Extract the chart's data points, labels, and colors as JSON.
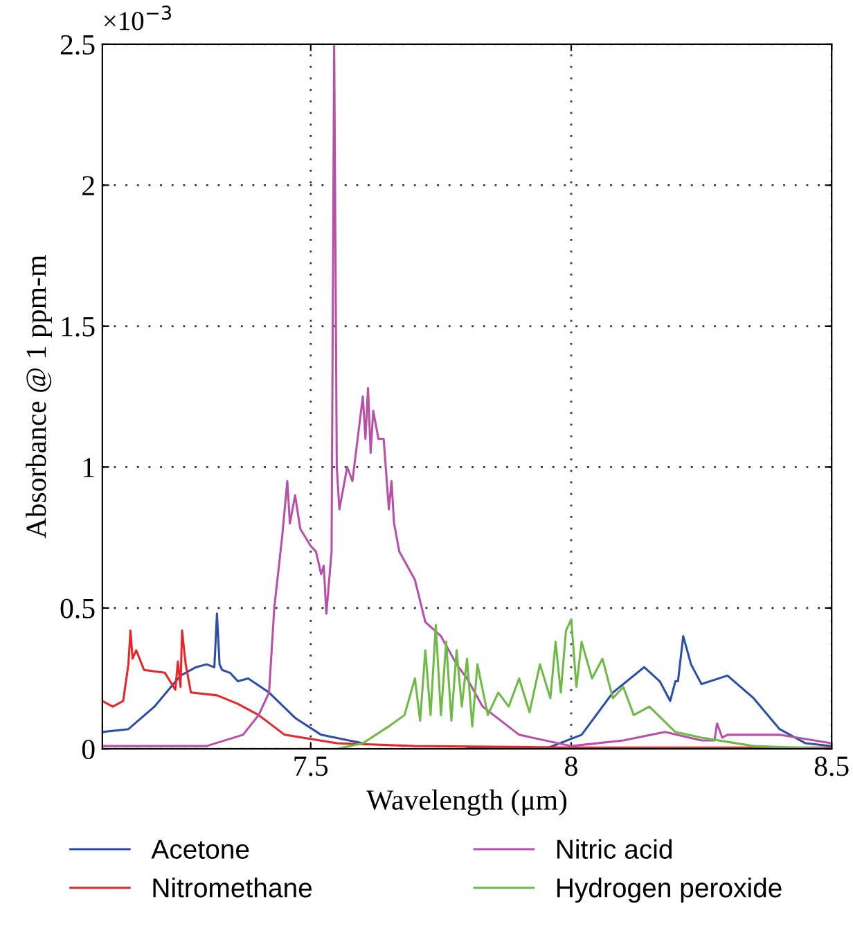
{
  "chart_data": {
    "type": "line",
    "xlabel": "Wavelength (μm)",
    "ylabel": "Absorbance @ 1 ppm-m",
    "annotations": [
      "×10$^{−3}$"
    ],
    "xlim": [
      7.1,
      8.5
    ],
    "ylim": [
      0,
      2.5
    ],
    "xticks": [
      7.5,
      8,
      8.5
    ],
    "yticks": [
      0,
      0.5,
      1,
      1.5,
      2,
      2.5
    ],
    "grid": true,
    "legend": "bottom",
    "line_style": "solid",
    "marker": "none",
    "series": [
      {
        "name": "Acetone",
        "color": "#2b4fa8",
        "x": [
          7.1,
          7.15,
          7.2,
          7.25,
          7.28,
          7.3,
          7.315,
          7.32,
          7.325,
          7.33,
          7.345,
          7.36,
          7.38,
          7.42,
          7.47,
          7.52,
          7.6,
          7.7,
          7.8,
          7.95,
          8.02,
          8.08,
          8.14,
          8.17,
          8.19,
          8.2,
          8.205,
          8.215,
          8.23,
          8.25,
          8.3,
          8.35,
          8.4,
          8.45,
          8.5
        ],
        "values": [
          0.06,
          0.07,
          0.15,
          0.26,
          0.29,
          0.3,
          0.29,
          0.48,
          0.3,
          0.28,
          0.27,
          0.24,
          0.25,
          0.2,
          0.11,
          0.05,
          0.02,
          null,
          0.005,
          0,
          0.05,
          0.2,
          0.29,
          0.24,
          0.17,
          0.24,
          0.24,
          0.4,
          0.3,
          0.23,
          0.26,
          0.18,
          0.07,
          0.02,
          0.01
        ]
      },
      {
        "name": "Nitromethane",
        "color": "#e8262a",
        "x": [
          7.1,
          7.12,
          7.14,
          7.15,
          7.154,
          7.158,
          7.165,
          7.18,
          7.22,
          7.24,
          7.245,
          7.25,
          7.253,
          7.26,
          7.27,
          7.32,
          7.36,
          7.4,
          7.45,
          7.55,
          7.7,
          8.0,
          8.5
        ],
        "values": [
          0.17,
          0.15,
          0.17,
          0.3,
          0.42,
          0.32,
          0.35,
          0.28,
          0.27,
          0.21,
          0.31,
          0.22,
          0.42,
          0.3,
          0.2,
          0.19,
          0.16,
          0.12,
          0.05,
          0.02,
          0.01,
          0.005,
          0.005
        ]
      },
      {
        "name": "Nitric acid",
        "color": "#b84fa8",
        "x": [
          7.1,
          7.3,
          7.37,
          7.4,
          7.42,
          7.43,
          7.445,
          7.455,
          7.46,
          7.47,
          7.48,
          7.5,
          7.51,
          7.52,
          7.525,
          7.53,
          7.54,
          7.545,
          7.55,
          7.555,
          7.56,
          7.57,
          7.58,
          7.59,
          7.6,
          7.605,
          7.61,
          7.615,
          7.62,
          7.63,
          7.64,
          7.65,
          7.655,
          7.66,
          7.67,
          7.7,
          7.72,
          7.75,
          7.78,
          7.8,
          7.83,
          7.9,
          8.0,
          8.1,
          8.18,
          8.25,
          8.275,
          8.28,
          8.29,
          8.3,
          8.4,
          8.5
        ],
        "values": [
          0.01,
          0.01,
          0.05,
          0.12,
          0.2,
          0.5,
          0.75,
          0.95,
          0.8,
          0.9,
          0.78,
          0.72,
          0.7,
          0.62,
          0.65,
          0.48,
          0.7,
          2.5,
          1.0,
          0.85,
          0.9,
          1.0,
          0.95,
          1.1,
          1.25,
          1.1,
          1.28,
          1.05,
          1.2,
          1.1,
          1.1,
          0.85,
          0.95,
          0.8,
          0.7,
          0.6,
          0.45,
          0.4,
          0.3,
          0.25,
          0.15,
          0.05,
          0.01,
          0.03,
          0.06,
          0.03,
          0.03,
          0.09,
          0.04,
          0.05,
          0.05,
          0.02
        ]
      },
      {
        "name": "Hydrogen peroxide",
        "color": "#6dbb45",
        "x": [
          7.1,
          7.55,
          7.6,
          7.65,
          7.68,
          7.7,
          7.71,
          7.72,
          7.73,
          7.74,
          7.75,
          7.76,
          7.77,
          7.78,
          7.79,
          7.8,
          7.81,
          7.82,
          7.84,
          7.86,
          7.88,
          7.9,
          7.92,
          7.94,
          7.96,
          7.97,
          7.98,
          7.99,
          8.0,
          8.01,
          8.02,
          8.04,
          8.06,
          8.08,
          8.1,
          8.12,
          8.15,
          8.2,
          8.25,
          8.35,
          8.5
        ],
        "values": [
          0,
          0,
          0.02,
          0.08,
          0.12,
          0.25,
          0.1,
          0.35,
          0.12,
          0.44,
          0.12,
          0.38,
          0.1,
          0.35,
          0.15,
          0.32,
          0.08,
          0.3,
          0.12,
          0.2,
          0.15,
          0.25,
          0.13,
          0.3,
          0.18,
          0.38,
          0.2,
          0.42,
          0.46,
          0.22,
          0.38,
          0.25,
          0.32,
          0.18,
          0.22,
          0.12,
          0.15,
          0.06,
          0.04,
          0.01,
          0
        ]
      }
    ]
  }
}
